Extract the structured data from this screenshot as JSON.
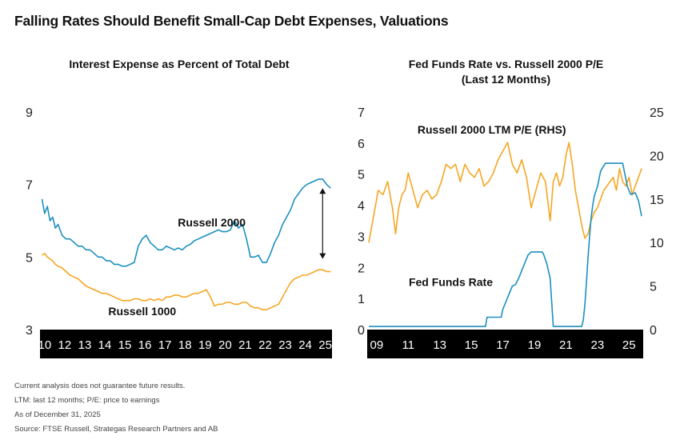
{
  "title": "Falling Rates Should Benefit Small-Cap Debt Expenses, Valuations",
  "footnotes": [
    "Current analysis does not guarantee future results.",
    "LTM: last 12 months; P/E: price to earnings",
    "As of December 31, 2025",
    "Source: FTSE Russell, Strategas Research Partners and AB"
  ],
  "colors": {
    "blue": "#1c8fbf",
    "orange": "#f5a623",
    "axis_band": "#000000",
    "axis_text": "#ffffff"
  },
  "chart_data": [
    {
      "type": "line",
      "title": "Interest Expense as Percent of Total Debt",
      "x_tick_labels": [
        "10",
        "12",
        "13",
        "14",
        "15",
        "16",
        "17",
        "18",
        "19",
        "20",
        "21",
        "22",
        "23",
        "24",
        "25"
      ],
      "x_tick_years": [
        2010,
        2011.5,
        2013,
        2014.5,
        2016,
        2017.5,
        2019,
        2020.5,
        2022,
        2023.5,
        2025,
        2026.5,
        2028,
        2029.5,
        2031
      ],
      "xlim": [
        2009.65,
        2031.5
      ],
      "ylim": [
        3,
        9
      ],
      "y_ticks": [
        3,
        5,
        7,
        9
      ],
      "y_tick_labels": [
        "3",
        "5",
        "7",
        "9"
      ],
      "annotations": [
        {
          "text": "Russell 2000",
          "x": 2022.5,
          "y": 5.85
        },
        {
          "text": "Russell 1000",
          "x": 2017.3,
          "y": 3.4
        }
      ],
      "arrow": {
        "x": 2030.8,
        "y_from": 4.95,
        "y_to": 6.9
      },
      "series": [
        {
          "name": "Russell 2000",
          "color": "#1c8fbf",
          "x": [
            2009.8,
            2010.0,
            2010.2,
            2010.4,
            2010.6,
            2010.8,
            2011.0,
            2011.3,
            2011.6,
            2011.9,
            2012.2,
            2012.5,
            2012.8,
            2013.1,
            2013.4,
            2013.7,
            2014.0,
            2014.3,
            2014.6,
            2014.9,
            2015.2,
            2015.5,
            2015.8,
            2016.1,
            2016.4,
            2016.7,
            2017.0,
            2017.3,
            2017.6,
            2017.9,
            2018.2,
            2018.5,
            2018.8,
            2019.1,
            2019.4,
            2019.7,
            2020.0,
            2020.3,
            2020.6,
            2020.9,
            2021.2,
            2021.5,
            2021.8,
            2022.1,
            2022.4,
            2022.7,
            2023.0,
            2023.3,
            2023.6,
            2023.9,
            2024.2,
            2024.5,
            2024.8,
            2025.1,
            2025.4,
            2025.7,
            2026.0,
            2026.3,
            2026.6,
            2026.9,
            2027.2,
            2027.5,
            2027.8,
            2028.1,
            2028.4,
            2028.7,
            2029.0,
            2029.3,
            2029.6,
            2029.9,
            2030.2,
            2030.5,
            2030.8,
            2031.1,
            2031.4
          ],
          "values": [
            6.6,
            6.2,
            6.4,
            6.0,
            6.1,
            5.8,
            5.9,
            5.6,
            5.5,
            5.5,
            5.4,
            5.3,
            5.3,
            5.2,
            5.2,
            5.1,
            5.0,
            5.0,
            4.9,
            4.9,
            4.8,
            4.8,
            4.75,
            4.75,
            4.8,
            4.85,
            5.3,
            5.5,
            5.6,
            5.4,
            5.3,
            5.2,
            5.2,
            5.3,
            5.25,
            5.2,
            5.25,
            5.2,
            5.3,
            5.35,
            5.45,
            5.5,
            5.55,
            5.6,
            5.65,
            5.7,
            5.75,
            5.7,
            5.7,
            5.75,
            6.0,
            5.8,
            5.9,
            5.5,
            5.0,
            5.0,
            5.05,
            4.85,
            4.85,
            5.1,
            5.4,
            5.6,
            5.9,
            6.1,
            6.3,
            6.6,
            6.75,
            6.9,
            7.0,
            7.05,
            7.1,
            7.15,
            7.15,
            7.0,
            6.9
          ]
        },
        {
          "name": "Russell 1000",
          "color": "#f5a623",
          "x": [
            2009.8,
            2010.0,
            2010.2,
            2010.4,
            2010.6,
            2010.8,
            2011.0,
            2011.3,
            2011.6,
            2011.9,
            2012.2,
            2012.5,
            2012.8,
            2013.1,
            2013.4,
            2013.7,
            2014.0,
            2014.3,
            2014.6,
            2014.9,
            2015.2,
            2015.5,
            2015.8,
            2016.1,
            2016.4,
            2016.7,
            2017.0,
            2017.3,
            2017.6,
            2017.9,
            2018.2,
            2018.5,
            2018.8,
            2019.1,
            2019.4,
            2019.7,
            2020.0,
            2020.3,
            2020.6,
            2020.9,
            2021.2,
            2021.5,
            2021.8,
            2022.1,
            2022.4,
            2022.7,
            2023.0,
            2023.3,
            2023.6,
            2023.9,
            2024.2,
            2024.5,
            2024.8,
            2025.1,
            2025.4,
            2025.7,
            2026.0,
            2026.3,
            2026.6,
            2026.9,
            2027.2,
            2027.5,
            2027.8,
            2028.1,
            2028.4,
            2028.7,
            2029.0,
            2029.3,
            2029.6,
            2029.9,
            2030.2,
            2030.5,
            2030.8,
            2031.1,
            2031.4
          ],
          "values": [
            5.05,
            5.1,
            5.0,
            4.95,
            4.9,
            4.8,
            4.75,
            4.7,
            4.6,
            4.5,
            4.45,
            4.4,
            4.3,
            4.2,
            4.15,
            4.1,
            4.05,
            4.0,
            4.0,
            3.95,
            3.9,
            3.85,
            3.8,
            3.8,
            3.8,
            3.85,
            3.85,
            3.8,
            3.8,
            3.85,
            3.8,
            3.85,
            3.8,
            3.9,
            3.9,
            3.95,
            3.95,
            3.9,
            3.9,
            3.95,
            4.0,
            4.0,
            4.05,
            4.1,
            3.9,
            3.65,
            3.7,
            3.7,
            3.75,
            3.75,
            3.7,
            3.7,
            3.75,
            3.75,
            3.65,
            3.6,
            3.6,
            3.55,
            3.55,
            3.6,
            3.65,
            3.7,
            3.9,
            4.1,
            4.3,
            4.4,
            4.45,
            4.5,
            4.5,
            4.55,
            4.6,
            4.65,
            4.65,
            4.6,
            4.6
          ]
        }
      ]
    },
    {
      "type": "line",
      "title": "Fed Funds Rate vs. Russell 2000 P/E\n(Last 12 Months)",
      "x_tick_labels": [
        "09",
        "11",
        "13",
        "15",
        "17",
        "19",
        "21",
        "23",
        "25"
      ],
      "x_tick_years": [
        2009,
        2011,
        2013,
        2015,
        2017,
        2019,
        2021,
        2023,
        2025
      ],
      "xlim": [
        2008.4,
        2025.9
      ],
      "y_ticks_left": [
        0,
        1,
        2,
        3,
        4,
        5,
        6,
        7
      ],
      "y_tick_labels_left": [
        "0",
        "1",
        "2",
        "3",
        "4",
        "5",
        "6",
        "7"
      ],
      "ylim_left": [
        0,
        7
      ],
      "y_ticks_right": [
        0,
        5,
        10,
        15,
        20,
        25
      ],
      "y_tick_labels_right": [
        "0",
        "5",
        "10",
        "15",
        "20",
        "25"
      ],
      "ylim_right": [
        0,
        25
      ],
      "annotations": [
        {
          "text": "Russell 2000 LTM P/E (RHS)",
          "x": 2016.3,
          "y_left": 6.3
        },
        {
          "text": "Fed Funds Rate",
          "x": 2013.7,
          "y_left": 1.4
        }
      ],
      "series": [
        {
          "name": "Fed Funds Rate",
          "axis": "left",
          "color": "#1c8fbf",
          "x": [
            2008.5,
            2015.9,
            2016.0,
            2016.9,
            2017.0,
            2017.2,
            2017.4,
            2017.6,
            2017.8,
            2018.0,
            2018.2,
            2018.4,
            2018.6,
            2018.8,
            2019.0,
            2019.5,
            2019.6,
            2019.8,
            2020.0,
            2020.2,
            2021.3,
            2022.0,
            2022.1,
            2022.2,
            2022.3,
            2022.4,
            2022.5,
            2022.6,
            2022.7,
            2022.8,
            2023.0,
            2023.2,
            2023.5,
            2024.6,
            2024.7,
            2024.8,
            2024.9,
            2025.1,
            2025.4,
            2025.6,
            2025.8
          ],
          "values": [
            0.1,
            0.1,
            0.4,
            0.4,
            0.65,
            0.9,
            1.15,
            1.4,
            1.45,
            1.65,
            1.9,
            2.15,
            2.4,
            2.5,
            2.5,
            2.5,
            2.4,
            2.1,
            1.65,
            0.1,
            0.1,
            0.1,
            0.3,
            0.8,
            1.5,
            2.3,
            3.0,
            3.6,
            4.0,
            4.3,
            4.6,
            5.1,
            5.35,
            5.35,
            5.1,
            4.85,
            4.6,
            4.35,
            4.4,
            4.15,
            3.65
          ]
        },
        {
          "name": "Russell 2000 LTM P/E (RHS)",
          "axis": "right",
          "color": "#f5a623",
          "x": [
            2008.5,
            2008.8,
            2009.1,
            2009.4,
            2009.7,
            2010.0,
            2010.2,
            2010.4,
            2010.6,
            2010.8,
            2011.0,
            2011.3,
            2011.6,
            2011.9,
            2012.2,
            2012.5,
            2012.8,
            2013.1,
            2013.4,
            2013.7,
            2014.0,
            2014.3,
            2014.6,
            2014.9,
            2015.2,
            2015.5,
            2015.8,
            2016.1,
            2016.4,
            2016.7,
            2017.0,
            2017.3,
            2017.6,
            2017.9,
            2018.2,
            2018.5,
            2018.8,
            2019.1,
            2019.4,
            2019.7,
            2020.0,
            2020.2,
            2020.4,
            2020.6,
            2020.8,
            2021.0,
            2021.2,
            2021.4,
            2021.6,
            2021.8,
            2022.0,
            2022.2,
            2022.4,
            2022.6,
            2022.8,
            2023.0,
            2023.2,
            2023.4,
            2023.6,
            2023.8,
            2024.0,
            2024.2,
            2024.4,
            2024.6,
            2024.8,
            2025.0,
            2025.2,
            2025.4,
            2025.6,
            2025.8
          ],
          "values": [
            10.0,
            13.0,
            16.0,
            15.5,
            17.0,
            14.0,
            11.0,
            14.0,
            15.5,
            16.0,
            18.0,
            16.0,
            14.0,
            15.5,
            16.0,
            15.0,
            15.5,
            17.0,
            19.0,
            18.5,
            19.0,
            17.0,
            19.0,
            18.0,
            17.5,
            18.5,
            16.5,
            17.0,
            18.0,
            19.5,
            20.5,
            21.5,
            19.0,
            18.0,
            19.5,
            17.5,
            14.0,
            16.0,
            18.0,
            17.0,
            12.5,
            17.0,
            18.0,
            16.5,
            17.5,
            20.0,
            21.5,
            19.0,
            16.0,
            14.0,
            12.0,
            10.5,
            11.0,
            12.5,
            13.5,
            14.0,
            15.0,
            16.0,
            16.5,
            17.0,
            17.5,
            16.0,
            18.5,
            17.0,
            16.5,
            17.5,
            15.5,
            16.5,
            17.5,
            18.5
          ]
        }
      ]
    }
  ]
}
